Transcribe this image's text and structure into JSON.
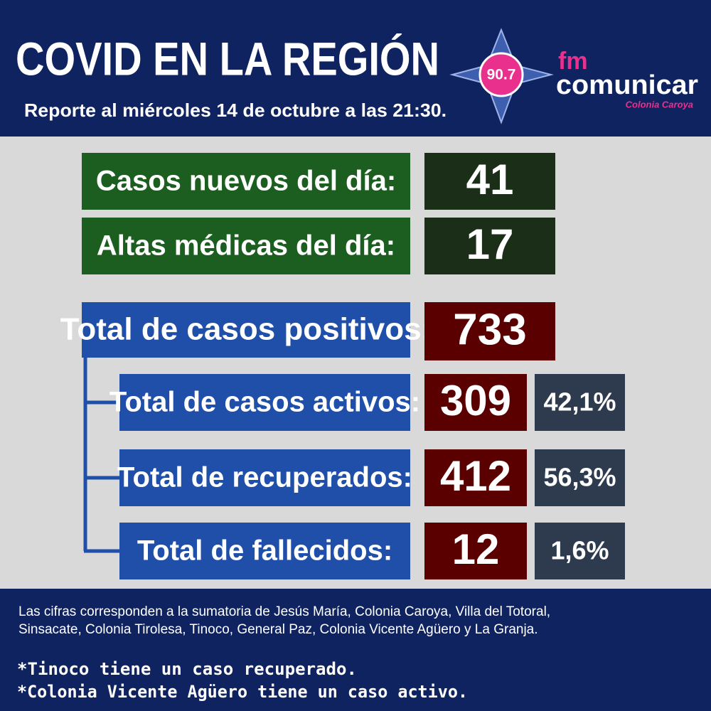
{
  "header": {
    "title": "COVID EN LA REGIÓN",
    "subtitle": "Reporte al miércoles 14 de octubre a las 21:30.",
    "logo": {
      "frequency": "90.7",
      "brand_prefix": "fm",
      "brand": "comunicar",
      "place": "Colonia Caroya"
    }
  },
  "daily": [
    {
      "label": "Casos nuevos del día:",
      "value": "41"
    },
    {
      "label": "Altas médicas del día:",
      "value": "17"
    }
  ],
  "total": {
    "label": "Total de casos positivos:",
    "value": "733"
  },
  "breakdown": [
    {
      "label": "Total de casos activos:",
      "value": "309",
      "percent": "42,1%"
    },
    {
      "label": "Total de recuperados:",
      "value": "412",
      "percent": "56,3%"
    },
    {
      "label": "Total de fallecidos:",
      "value": "12",
      "percent": "1,6%"
    }
  ],
  "footer": {
    "note_lines": [
      "Las cifras corresponden a la sumatoria de Jesús María, Colonia Caroya, Villa del Totoral,",
      "Sinsacate, Colonia Tirolesa, Tinoco, General Paz, Colonia Vicente Agüero  y La Granja."
    ],
    "remarks": [
      "*Tinoco tiene un caso recuperado.",
      "*Colonia Vicente Agüero tiene un caso activo."
    ]
  }
}
